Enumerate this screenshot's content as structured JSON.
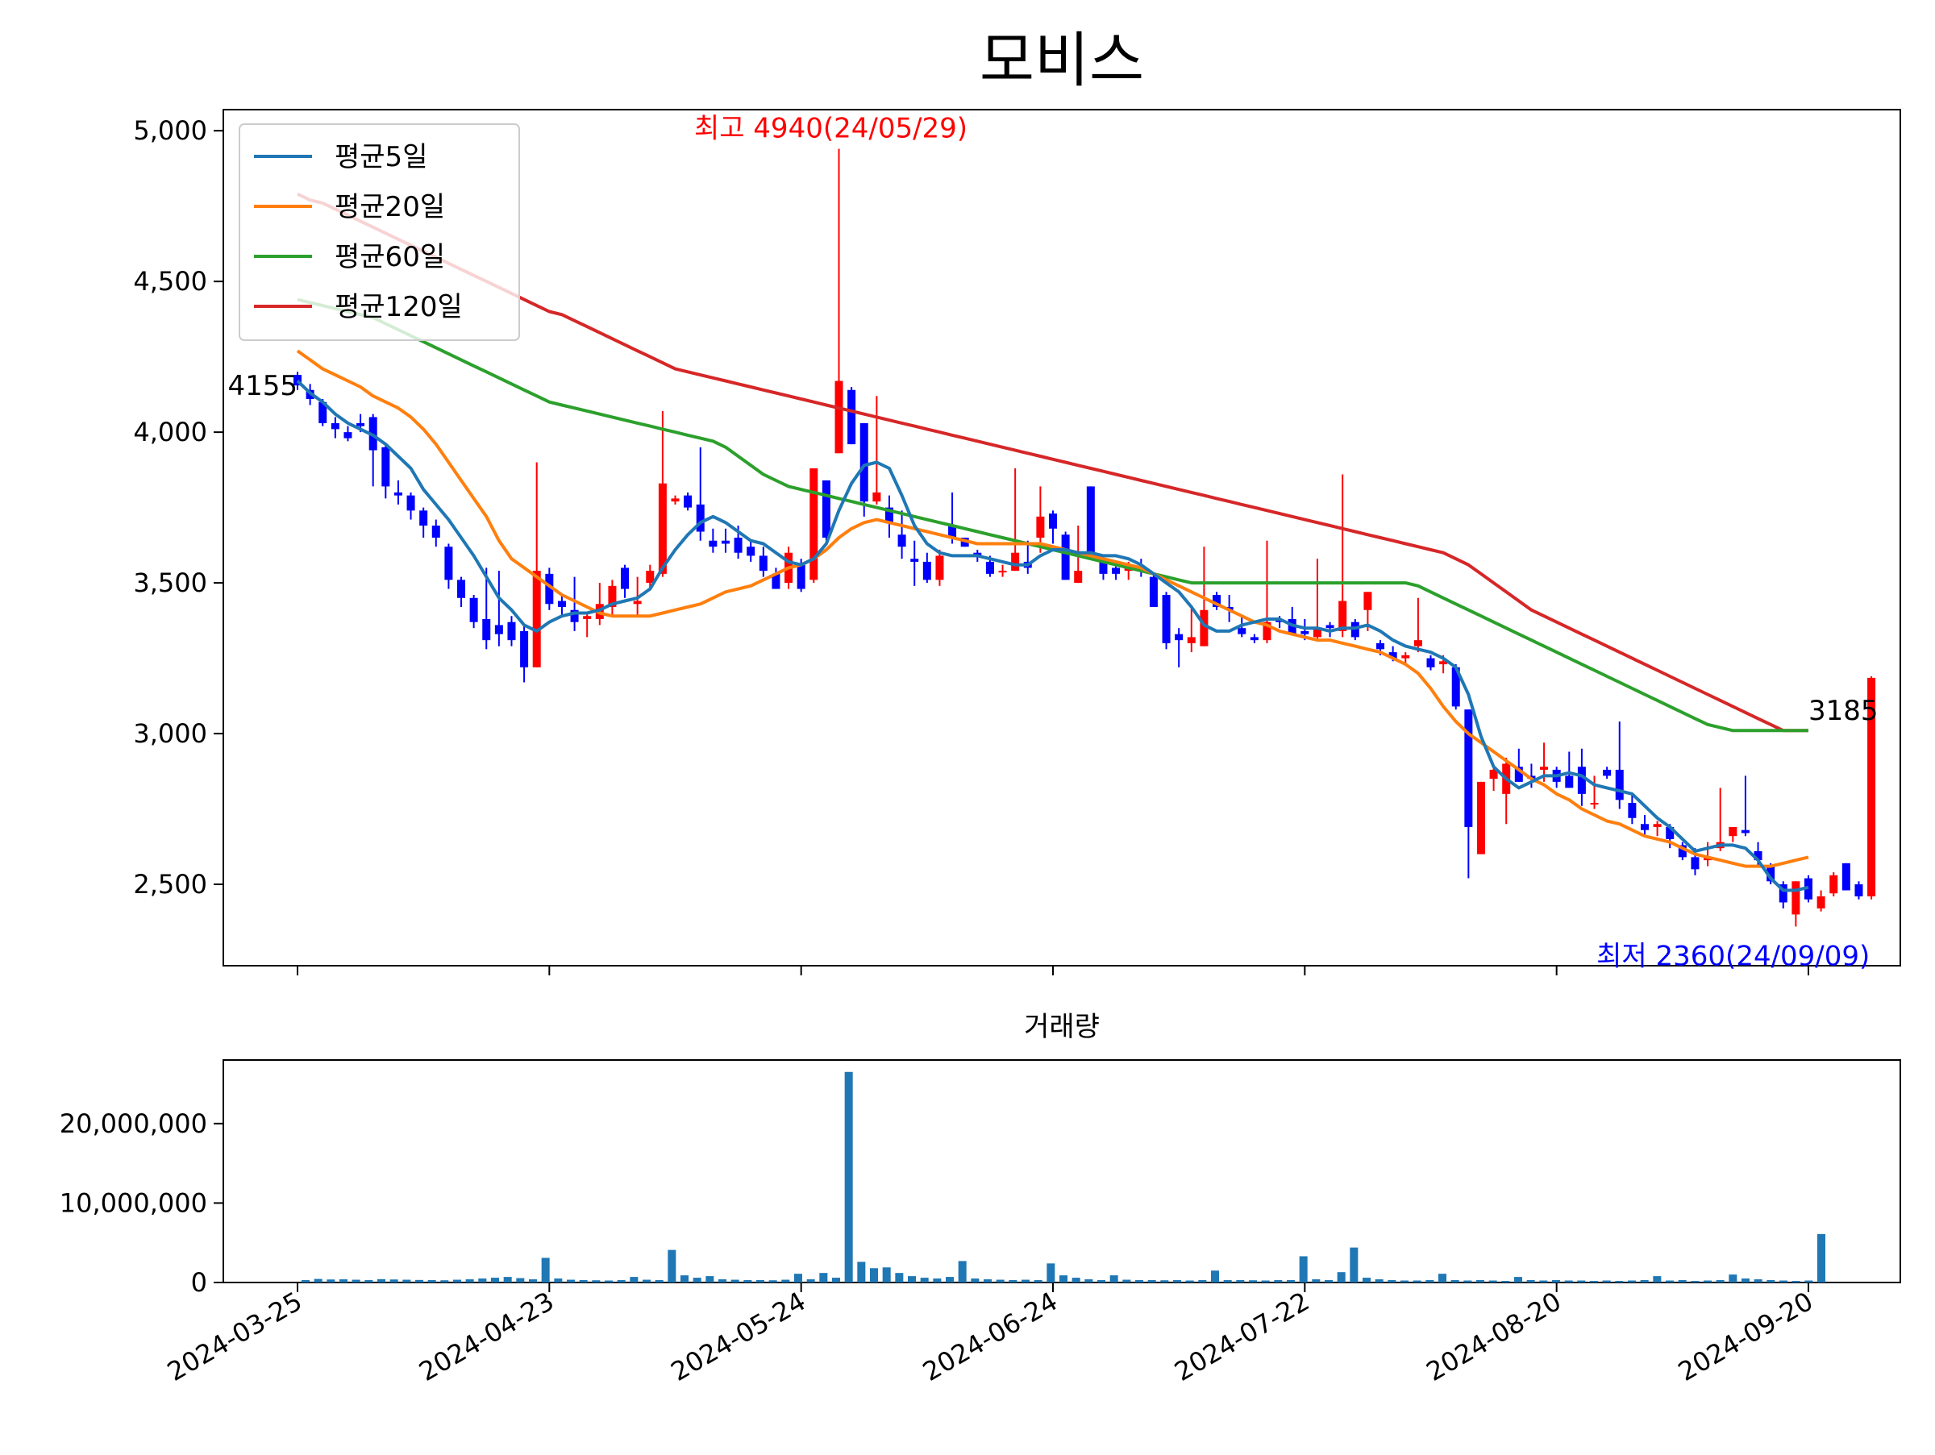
{
  "chart_data": {
    "type": "candlestick",
    "title": "모비스",
    "colors": {
      "up": "#ff0000",
      "down": "#0000ff",
      "ma5": "#1f77b4",
      "ma20": "#ff7f0e",
      "ma60": "#2ca02c",
      "ma120": "#d62728",
      "volume": "#1f77b4"
    },
    "legend": {
      "position": "upper-left",
      "entries": [
        {
          "key": "ma5",
          "label": "평균5일"
        },
        {
          "key": "ma20",
          "label": "평균20일"
        },
        {
          "key": "ma60",
          "label": "평균60일"
        },
        {
          "key": "ma120",
          "label": "평균120일"
        }
      ]
    },
    "price_axis": {
      "ylim": [
        2230,
        5070
      ],
      "ticks": [
        2500,
        3000,
        3500,
        4000,
        4500,
        5000
      ],
      "tick_labels": [
        "2,500",
        "3,000",
        "3,500",
        "4,000",
        "4,500",
        "5,000"
      ]
    },
    "x_axis": {
      "session_count": 121,
      "ticks": [
        {
          "index": 0,
          "label": "2024-03-25"
        },
        {
          "index": 20,
          "label": "2024-04-23"
        },
        {
          "index": 40,
          "label": "2024-05-24"
        },
        {
          "index": 60,
          "label": "2024-06-24"
        },
        {
          "index": 80,
          "label": "2024-07-22"
        },
        {
          "index": 100,
          "label": "2024-08-20"
        },
        {
          "index": 120,
          "label": "2024-09-20"
        }
      ]
    },
    "annotations": {
      "high": {
        "index": 43,
        "value": 4940,
        "text": "최고 4940(24/05/29)"
      },
      "low": {
        "index": 114,
        "value": 2360,
        "text": "최저 2360(24/09/09)"
      },
      "first_close": {
        "index": 0,
        "value": 4155,
        "text": "4155"
      },
      "last_close": {
        "index": 120,
        "value": 3185,
        "text": "3185"
      }
    },
    "candles": [
      [
        4190,
        4200,
        4140,
        4155
      ],
      [
        4140,
        4160,
        4090,
        4110
      ],
      [
        4100,
        4110,
        4020,
        4030
      ],
      [
        4030,
        4050,
        3980,
        4010
      ],
      [
        4000,
        4020,
        3970,
        3980
      ],
      [
        4030,
        4060,
        4000,
        4020
      ],
      [
        4050,
        4060,
        3820,
        3940
      ],
      [
        3950,
        3960,
        3780,
        3820
      ],
      [
        3800,
        3840,
        3760,
        3790
      ],
      [
        3790,
        3800,
        3710,
        3740
      ],
      [
        3740,
        3750,
        3650,
        3690
      ],
      [
        3690,
        3710,
        3620,
        3650
      ],
      [
        3620,
        3630,
        3480,
        3510
      ],
      [
        3510,
        3520,
        3420,
        3450
      ],
      [
        3450,
        3460,
        3350,
        3370
      ],
      [
        3380,
        3550,
        3280,
        3310
      ],
      [
        3360,
        3540,
        3290,
        3330
      ],
      [
        3370,
        3390,
        3290,
        3310
      ],
      [
        3340,
        3360,
        3170,
        3220
      ],
      [
        3220,
        3900,
        3220,
        3540
      ],
      [
        3530,
        3550,
        3410,
        3430
      ],
      [
        3440,
        3460,
        3390,
        3420
      ],
      [
        3410,
        3520,
        3340,
        3370
      ],
      [
        3380,
        3400,
        3320,
        3390
      ],
      [
        3380,
        3500,
        3360,
        3430
      ],
      [
        3420,
        3510,
        3390,
        3490
      ],
      [
        3550,
        3560,
        3450,
        3480
      ],
      [
        3430,
        3520,
        3390,
        3440
      ],
      [
        3500,
        3560,
        3480,
        3540
      ],
      [
        3530,
        4070,
        3520,
        3830
      ],
      [
        3770,
        3790,
        3760,
        3780
      ],
      [
        3790,
        3800,
        3740,
        3750
      ],
      [
        3760,
        3950,
        3640,
        3670
      ],
      [
        3640,
        3680,
        3600,
        3620
      ],
      [
        3640,
        3680,
        3600,
        3630
      ],
      [
        3650,
        3690,
        3580,
        3600
      ],
      [
        3620,
        3640,
        3570,
        3590
      ],
      [
        3590,
        3620,
        3520,
        3540
      ],
      [
        3530,
        3550,
        3480,
        3480
      ],
      [
        3500,
        3620,
        3480,
        3600
      ],
      [
        3560,
        3580,
        3470,
        3480
      ],
      [
        3510,
        3880,
        3500,
        3880
      ],
      [
        3840,
        3840,
        3640,
        3650
      ],
      [
        3930,
        4940,
        3930,
        4170
      ],
      [
        4140,
        4150,
        3960,
        3960
      ],
      [
        4030,
        4030,
        3720,
        3770
      ],
      [
        3770,
        4120,
        3760,
        3800
      ],
      [
        3750,
        3790,
        3650,
        3700
      ],
      [
        3660,
        3740,
        3580,
        3620
      ],
      [
        3580,
        3640,
        3490,
        3570
      ],
      [
        3570,
        3600,
        3500,
        3510
      ],
      [
        3510,
        3610,
        3490,
        3590
      ],
      [
        3690,
        3800,
        3630,
        3650
      ],
      [
        3650,
        3650,
        3620,
        3620
      ],
      [
        3600,
        3610,
        3570,
        3590
      ],
      [
        3570,
        3590,
        3520,
        3530
      ],
      [
        3540,
        3560,
        3520,
        3540
      ],
      [
        3540,
        3880,
        3540,
        3600
      ],
      [
        3570,
        3640,
        3530,
        3550
      ],
      [
        3650,
        3820,
        3600,
        3720
      ],
      [
        3730,
        3740,
        3630,
        3680
      ],
      [
        3660,
        3670,
        3510,
        3510
      ],
      [
        3500,
        3690,
        3500,
        3540
      ],
      [
        3820,
        3820,
        3600,
        3600
      ],
      [
        3570,
        3580,
        3510,
        3530
      ],
      [
        3550,
        3570,
        3510,
        3530
      ],
      [
        3540,
        3570,
        3510,
        3550
      ],
      [
        3550,
        3580,
        3520,
        3540
      ],
      [
        3520,
        3530,
        3420,
        3420
      ],
      [
        3460,
        3470,
        3280,
        3300
      ],
      [
        3330,
        3350,
        3220,
        3310
      ],
      [
        3300,
        3420,
        3270,
        3320
      ],
      [
        3290,
        3620,
        3290,
        3410
      ],
      [
        3460,
        3470,
        3410,
        3420
      ],
      [
        3420,
        3460,
        3370,
        3410
      ],
      [
        3350,
        3390,
        3320,
        3330
      ],
      [
        3320,
        3330,
        3300,
        3310
      ],
      [
        3310,
        3640,
        3300,
        3370
      ],
      [
        3380,
        3390,
        3350,
        3370
      ],
      [
        3380,
        3420,
        3330,
        3330
      ],
      [
        3340,
        3380,
        3310,
        3330
      ],
      [
        3320,
        3580,
        3310,
        3350
      ],
      [
        3360,
        3370,
        3320,
        3350
      ],
      [
        3340,
        3860,
        3320,
        3440
      ],
      [
        3370,
        3380,
        3310,
        3320
      ],
      [
        3410,
        3470,
        3340,
        3470
      ],
      [
        3300,
        3310,
        3260,
        3280
      ],
      [
        3270,
        3290,
        3240,
        3250
      ],
      [
        3250,
        3270,
        3230,
        3260
      ],
      [
        3290,
        3450,
        3270,
        3310
      ],
      [
        3250,
        3260,
        3210,
        3220
      ],
      [
        3230,
        3260,
        3200,
        3240
      ],
      [
        3220,
        3230,
        3080,
        3090
      ],
      [
        3080,
        3080,
        2520,
        2690
      ],
      [
        2600,
        2840,
        2600,
        2840
      ],
      [
        2850,
        2890,
        2810,
        2880
      ],
      [
        2800,
        2920,
        2700,
        2900
      ],
      [
        2890,
        2950,
        2840,
        2840
      ],
      [
        2860,
        2900,
        2820,
        2850
      ],
      [
        2880,
        2970,
        2840,
        2890
      ],
      [
        2880,
        2890,
        2820,
        2840
      ],
      [
        2860,
        2940,
        2820,
        2820
      ],
      [
        2890,
        2950,
        2760,
        2800
      ],
      [
        2770,
        2860,
        2750,
        2770
      ],
      [
        2880,
        2890,
        2850,
        2860
      ],
      [
        2880,
        3040,
        2750,
        2780
      ],
      [
        2770,
        2800,
        2700,
        2720
      ],
      [
        2700,
        2730,
        2660,
        2680
      ],
      [
        2690,
        2710,
        2660,
        2700
      ],
      [
        2690,
        2700,
        2620,
        2650
      ],
      [
        2630,
        2640,
        2580,
        2590
      ],
      [
        2590,
        2620,
        2530,
        2550
      ],
      [
        2580,
        2640,
        2560,
        2590
      ],
      [
        2620,
        2820,
        2610,
        2640
      ],
      [
        2660,
        2690,
        2640,
        2690
      ],
      [
        2680,
        2860,
        2660,
        2670
      ],
      [
        2610,
        2640,
        2560,
        2580
      ],
      [
        2560,
        2570,
        2500,
        2510
      ],
      [
        2500,
        2510,
        2420,
        2440
      ],
      [
        2400,
        2510,
        2360,
        2510
      ],
      [
        2520,
        2530,
        2440,
        2450
      ],
      [
        2420,
        2480,
        2410,
        2460
      ],
      [
        2470,
        2540,
        2460,
        2530
      ],
      [
        2570,
        2570,
        2480,
        2480
      ],
      [
        2500,
        2510,
        2450,
        2460
      ],
      [
        2460,
        3190,
        2450,
        3185
      ]
    ],
    "ma5": [
      4170,
      4130,
      4100,
      4060,
      4030,
      4010,
      3990,
      3960,
      3920,
      3880,
      3810,
      3760,
      3710,
      3650,
      3590,
      3520,
      3450,
      3410,
      3360,
      3340,
      3370,
      3390,
      3400,
      3400,
      3410,
      3430,
      3440,
      3450,
      3480,
      3550,
      3610,
      3660,
      3700,
      3720,
      3700,
      3670,
      3640,
      3630,
      3600,
      3570,
      3560,
      3580,
      3630,
      3740,
      3830,
      3890,
      3900,
      3880,
      3790,
      3690,
      3630,
      3600,
      3590,
      3590,
      3590,
      3580,
      3570,
      3560,
      3560,
      3590,
      3610,
      3610,
      3600,
      3600,
      3590,
      3590,
      3580,
      3560,
      3530,
      3500,
      3470,
      3420,
      3360,
      3340,
      3340,
      3360,
      3370,
      3380,
      3380,
      3360,
      3350,
      3350,
      3340,
      3350,
      3350,
      3360,
      3340,
      3310,
      3290,
      3280,
      3270,
      3250,
      3220,
      3130,
      2990,
      2890,
      2850,
      2820,
      2840,
      2860,
      2860,
      2870,
      2860,
      2830,
      2820,
      2810,
      2800,
      2760,
      2720,
      2690,
      2650,
      2610,
      2620,
      2630,
      2630,
      2620,
      2580,
      2520,
      2480,
      2480,
      2490
    ],
    "ma20_start": 0,
    "ma20": [
      4270,
      4240,
      4210,
      4190,
      4170,
      4150,
      4120,
      4100,
      4080,
      4050,
      4010,
      3960,
      3900,
      3840,
      3780,
      3720,
      3640,
      3580,
      3550,
      3520,
      3490,
      3460,
      3440,
      3420,
      3400,
      3390,
      3390,
      3390,
      3390,
      3400,
      3410,
      3420,
      3430,
      3450,
      3470,
      3480,
      3490,
      3510,
      3530,
      3550,
      3560,
      3580,
      3610,
      3650,
      3680,
      3700,
      3710,
      3700,
      3690,
      3680,
      3670,
      3660,
      3650,
      3640,
      3630,
      3630,
      3630,
      3630,
      3630,
      3630,
      3620,
      3610,
      3600,
      3590,
      3580,
      3570,
      3560,
      3550,
      3530,
      3510,
      3490,
      3470,
      3450,
      3430,
      3410,
      3390,
      3370,
      3360,
      3340,
      3330,
      3320,
      3310,
      3310,
      3300,
      3290,
      3280,
      3270,
      3250,
      3230,
      3200,
      3150,
      3090,
      3040,
      3000,
      2970,
      2940,
      2910,
      2880,
      2850,
      2830,
      2800,
      2780,
      2750,
      2730,
      2710,
      2700,
      2680,
      2660,
      2650,
      2640,
      2620,
      2600,
      2590,
      2580,
      2570,
      2560,
      2560,
      2560,
      2570,
      2580,
      2590
    ],
    "ma60_start": 0,
    "ma60": [
      4440,
      4430,
      4420,
      4410,
      4400,
      4390,
      4380,
      4360,
      4340,
      4320,
      4300,
      4280,
      4260,
      4240,
      4220,
      4200,
      4180,
      4160,
      4140,
      4120,
      4100,
      4090,
      4080,
      4070,
      4060,
      4050,
      4040,
      4030,
      4020,
      4010,
      4000,
      3990,
      3980,
      3970,
      3950,
      3920,
      3890,
      3860,
      3840,
      3820,
      3810,
      3800,
      3790,
      3780,
      3770,
      3760,
      3750,
      3740,
      3730,
      3720,
      3710,
      3700,
      3690,
      3680,
      3670,
      3660,
      3650,
      3640,
      3630,
      3620,
      3610,
      3600,
      3590,
      3580,
      3570,
      3560,
      3550,
      3540,
      3530,
      3520,
      3510,
      3500,
      3500,
      3500,
      3500,
      3500,
      3500,
      3500,
      3500,
      3500,
      3500,
      3500,
      3500,
      3500,
      3500,
      3500,
      3500,
      3500,
      3500,
      3490,
      3470,
      3450,
      3430,
      3410,
      3390,
      3370,
      3350,
      3330,
      3310,
      3290,
      3270,
      3250,
      3230,
      3210,
      3190,
      3170,
      3150,
      3130,
      3110,
      3090,
      3070,
      3050,
      3030,
      3020,
      3010,
      3010,
      3010,
      3010,
      3010,
      3010,
      3010
    ],
    "ma120_start": 0,
    "ma120": [
      4790,
      4770,
      4760,
      4740,
      4720,
      4700,
      4680,
      4660,
      4640,
      4620,
      4600,
      4580,
      4560,
      4540,
      4520,
      4500,
      4480,
      4460,
      4440,
      4420,
      4400,
      4390,
      4370,
      4350,
      4330,
      4310,
      4290,
      4270,
      4250,
      4230,
      4210,
      4200,
      4190,
      4180,
      4170,
      4160,
      4150,
      4140,
      4130,
      4120,
      4110,
      4100,
      4090,
      4080,
      4070,
      4060,
      4050,
      4040,
      4030,
      4020,
      4010,
      4000,
      3990,
      3980,
      3970,
      3960,
      3950,
      3940,
      3930,
      3920,
      3910,
      3900,
      3890,
      3880,
      3870,
      3860,
      3850,
      3840,
      3830,
      3820,
      3810,
      3800,
      3790,
      3780,
      3770,
      3760,
      3750,
      3740,
      3730,
      3720,
      3710,
      3700,
      3690,
      3680,
      3670,
      3660,
      3650,
      3640,
      3630,
      3620,
      3610,
      3600,
      3580,
      3560,
      3530,
      3500,
      3470,
      3440,
      3410,
      3390,
      3370,
      3350,
      3330,
      3310,
      3290,
      3270,
      3250,
      3230,
      3210,
      3190,
      3170,
      3150,
      3130,
      3110,
      3090,
      3070,
      3050,
      3030,
      3010,
      3010,
      3010
    ],
    "volume_axis": {
      "title": "거래량",
      "ylim": [
        0,
        28000000
      ],
      "ticks": [
        0,
        10000000,
        20000000
      ],
      "tick_labels": [
        "0",
        "10,000,000",
        "20,000,000"
      ]
    },
    "volume": [
      300000,
      450000,
      380000,
      400000,
      350000,
      300000,
      420000,
      380000,
      350000,
      320000,
      300000,
      280000,
      350000,
      400000,
      500000,
      600000,
      700000,
      550000,
      400000,
      3100000,
      500000,
      350000,
      300000,
      280000,
      250000,
      300000,
      700000,
      350000,
      300000,
      4100000,
      900000,
      600000,
      800000,
      400000,
      350000,
      300000,
      300000,
      280000,
      350000,
      1100000,
      400000,
      1200000,
      600000,
      26500000,
      2600000,
      1800000,
      1900000,
      1200000,
      800000,
      600000,
      500000,
      700000,
      2700000,
      500000,
      400000,
      350000,
      300000,
      350000,
      300000,
      2400000,
      900000,
      600000,
      400000,
      300000,
      900000,
      350000,
      300000,
      300000,
      280000,
      300000,
      250000,
      300000,
      1500000,
      300000,
      300000,
      280000,
      250000,
      300000,
      300000,
      3300000,
      400000,
      300000,
      1300000,
      4400000,
      600000,
      400000,
      300000,
      250000,
      250000,
      300000,
      1100000,
      300000,
      250000,
      300000,
      250000,
      200000,
      700000,
      300000,
      250000,
      300000,
      250000,
      250000,
      200000,
      250000,
      200000,
      250000,
      300000,
      800000,
      250000,
      300000,
      200000,
      250000,
      300000,
      1000000,
      500000,
      400000,
      300000,
      250000,
      200000,
      250000,
      6100000
    ]
  }
}
